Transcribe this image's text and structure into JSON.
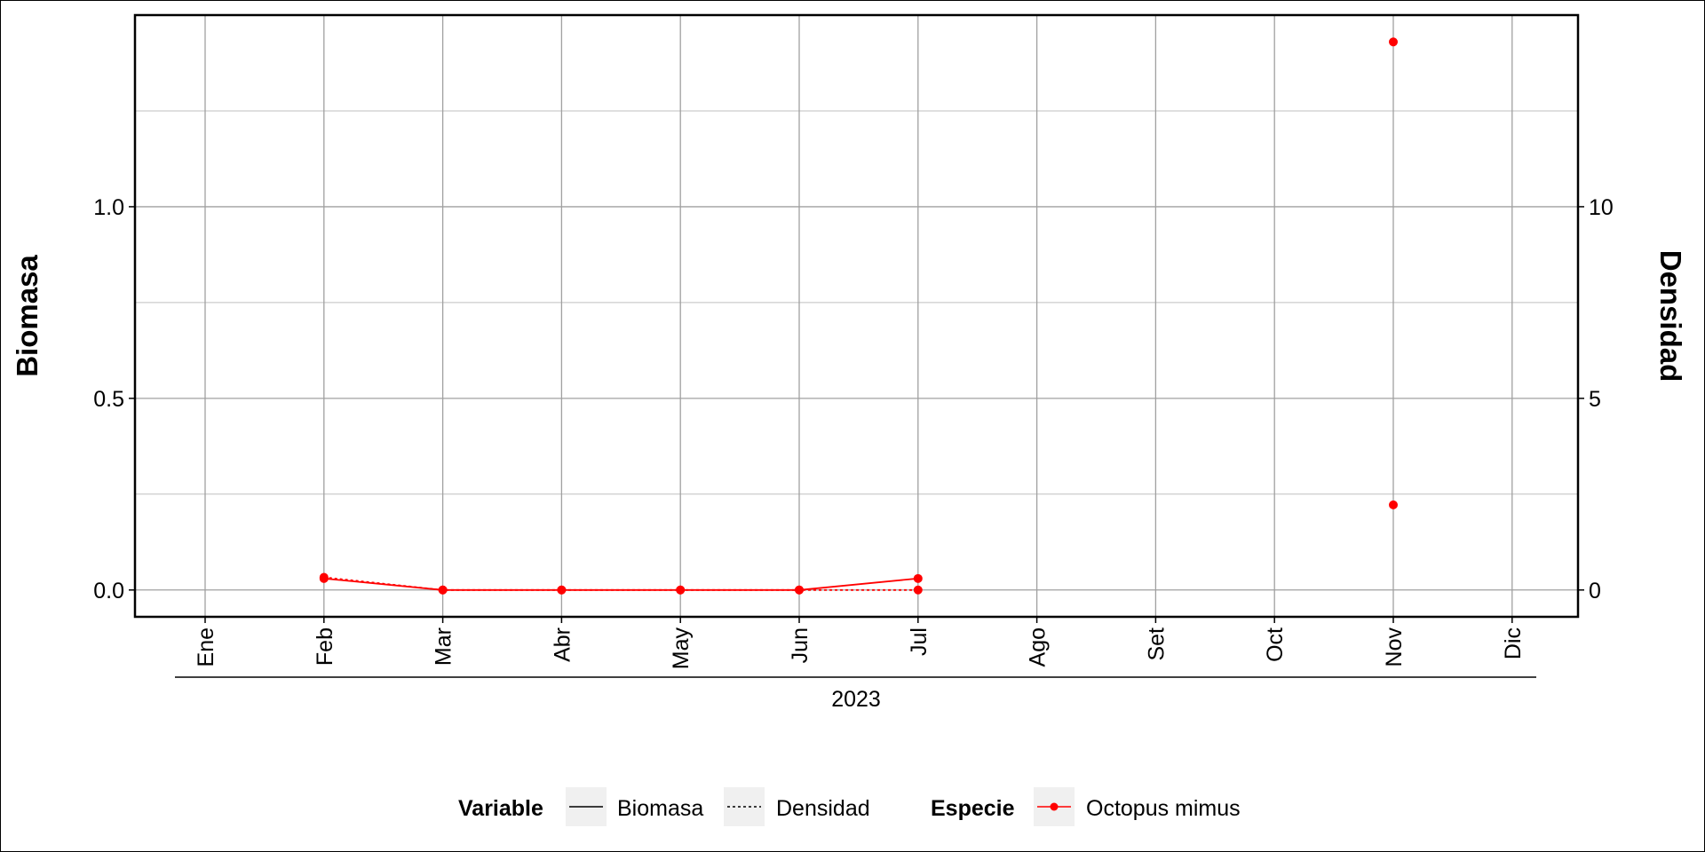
{
  "chart_data": {
    "type": "line",
    "categories": [
      "Ene",
      "Feb",
      "Mar",
      "Abr",
      "May",
      "Jun",
      "Jul",
      "Ago",
      "Set",
      "Oct",
      "Nov",
      "Dic"
    ],
    "year_label": "2023",
    "left_axis": {
      "title": "Biomasa",
      "ylim": [
        -0.07,
        1.5
      ],
      "ticks": [
        0.0,
        0.5,
        1.0
      ],
      "tick_labels": [
        "0.0",
        "0.5",
        "1.0"
      ]
    },
    "right_axis": {
      "title": "Densidad",
      "ylim": [
        -0.7,
        15
      ],
      "ticks": [
        0,
        5,
        10
      ],
      "tick_labels": [
        "0",
        "5",
        "10"
      ]
    },
    "grid": true,
    "legend_position": "bottom",
    "series": [
      {
        "name": "Biomasa",
        "species": "Octopus mimus",
        "axis": "left",
        "linestyle": "solid",
        "color": "#ff0000",
        "points": [
          {
            "x": "Feb",
            "y": 0.03
          },
          {
            "x": "Mar",
            "y": 0.0
          },
          {
            "x": "Abr",
            "y": 0.0
          },
          {
            "x": "May",
            "y": 0.0
          },
          {
            "x": "Jun",
            "y": 0.0
          },
          {
            "x": "Jul",
            "y": 0.03
          },
          {
            "x": "Nov",
            "y": 1.43
          }
        ],
        "segments": [
          [
            "Feb",
            "Mar",
            "Abr",
            "May",
            "Jun",
            "Jul"
          ],
          [
            "Nov"
          ]
        ]
      },
      {
        "name": "Densidad",
        "species": "Octopus mimus",
        "axis": "right",
        "linestyle": "dashed",
        "color": "#ff0000",
        "points": [
          {
            "x": "Feb",
            "y": 0.33
          },
          {
            "x": "Mar",
            "y": 0
          },
          {
            "x": "Abr",
            "y": 0
          },
          {
            "x": "May",
            "y": 0
          },
          {
            "x": "Jun",
            "y": 0
          },
          {
            "x": "Jul",
            "y": 0
          },
          {
            "x": "Nov",
            "y": 2.22
          }
        ],
        "segments": [
          [
            "Feb",
            "Mar",
            "Abr",
            "May",
            "Jun",
            "Jul"
          ],
          [
            "Nov"
          ]
        ]
      }
    ],
    "legend": {
      "variable_title": "Variable",
      "variable_items": [
        {
          "label": "Biomasa",
          "linestyle": "solid"
        },
        {
          "label": "Densidad",
          "linestyle": "dashed"
        }
      ],
      "species_title": "Especie",
      "species_items": [
        {
          "label": "Octopus mimus",
          "color": "#ff0000"
        }
      ]
    }
  }
}
